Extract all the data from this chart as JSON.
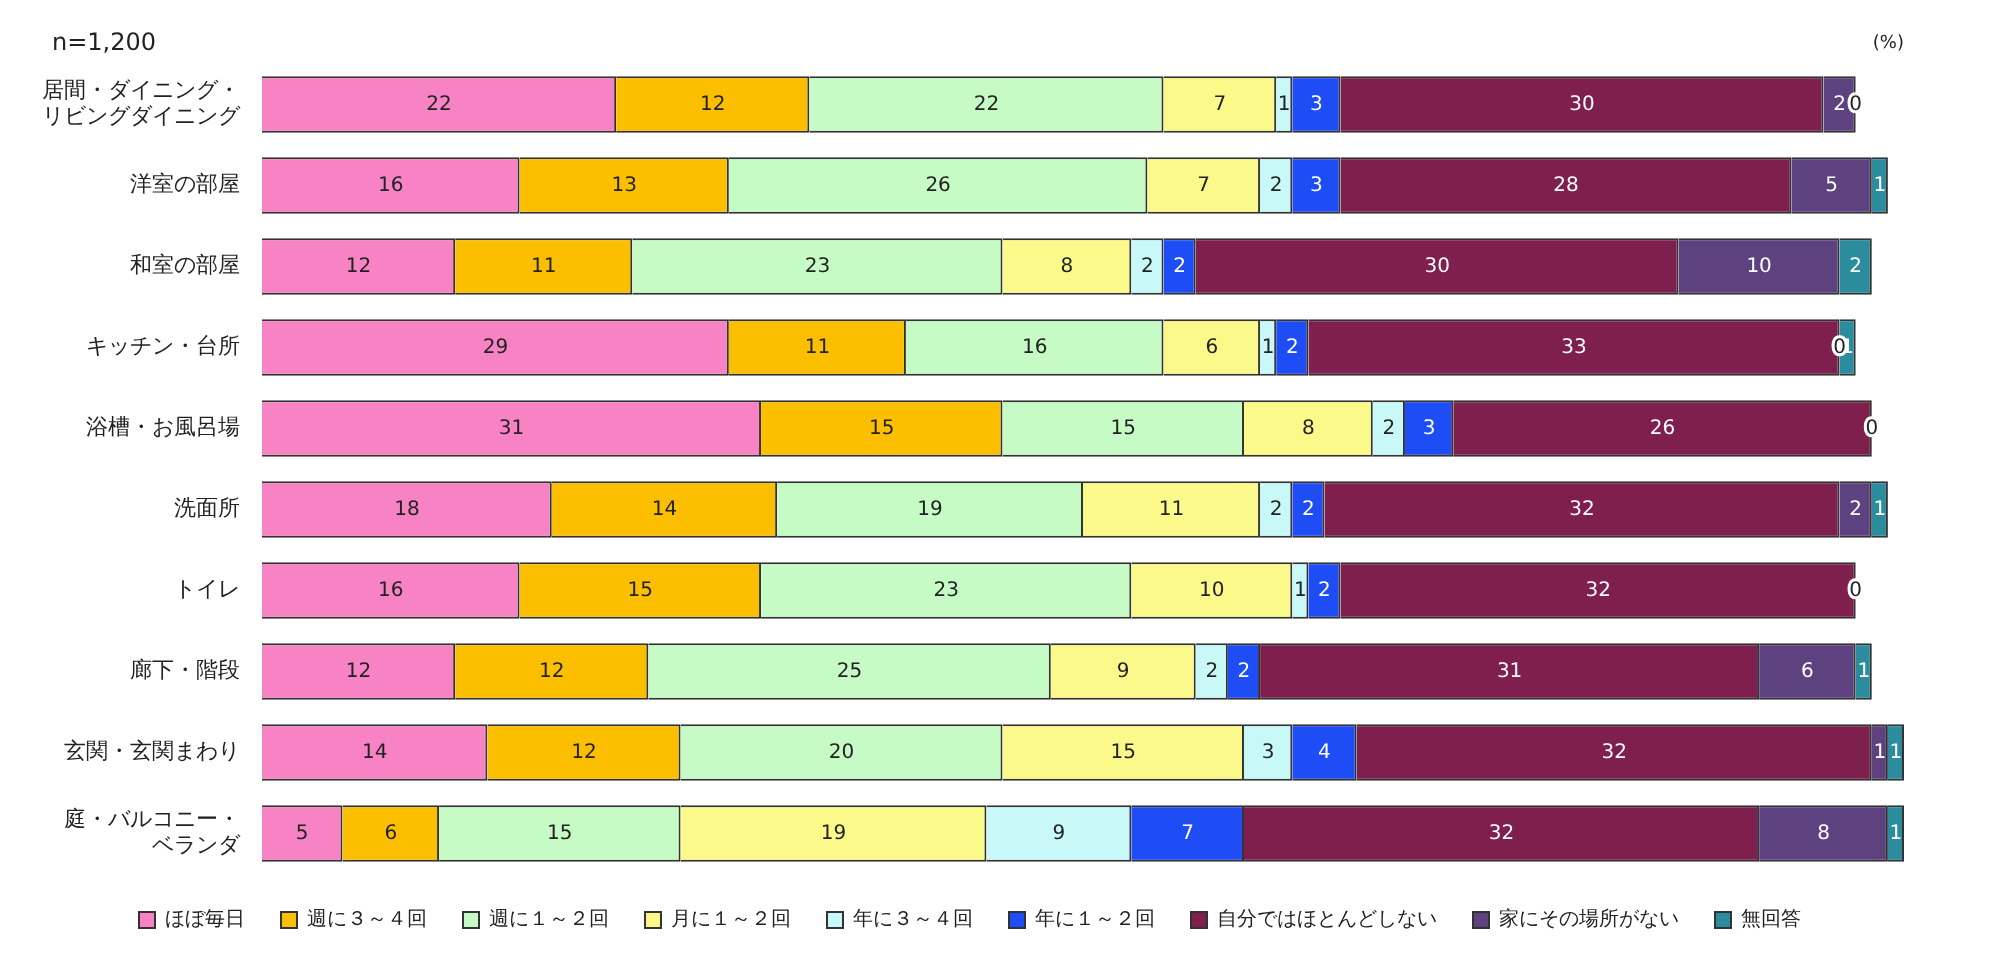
{
  "chart_data": {
    "type": "bar",
    "orientation": "horizontal",
    "stacked": true,
    "legend": "bottom",
    "categories": [
      "居間・ダイニング・リビングダイニング",
      "洋室の部屋",
      "和室の部屋",
      "キッチン・台所",
      "浴槽・お風呂場",
      "洗面所",
      "トイレ",
      "廊下・階段",
      "玄関・玄関まわり",
      "庭・バルコニー・ベランダ"
    ],
    "annotations": [
      "n=1,200",
      "(%)"
    ],
    "series": [
      {
        "name": "ほぼ毎日",
        "color": "#f783c4",
        "values": [
          22,
          16,
          12,
          29,
          31,
          18,
          16,
          12,
          14,
          5
        ],
        "value_labels": [
          "22",
          "16",
          "12",
          "29",
          "31",
          "18",
          "16",
          "12",
          "14",
          "5"
        ]
      },
      {
        "name": "週に３～４回",
        "color": "#fbbf00",
        "values": [
          12,
          13,
          11,
          11,
          15,
          14,
          15,
          12,
          12,
          6
        ],
        "value_labels": [
          "12",
          "13",
          "11",
          "11",
          "15",
          "14",
          "15",
          "12",
          "12",
          "6"
        ]
      },
      {
        "name": "週に１～２回",
        "color": "#c6fbc6",
        "values": [
          22,
          26,
          23,
          16,
          15,
          19,
          23,
          25,
          20,
          15
        ],
        "value_labels": [
          "22",
          "26",
          "23",
          "16",
          "15",
          "19",
          "23",
          "25",
          "20",
          "15"
        ]
      },
      {
        "name": "月に１～２回",
        "color": "#fbf98a",
        "values": [
          7,
          7,
          8,
          6,
          8,
          11,
          10,
          9,
          15,
          19
        ],
        "value_labels": [
          "7",
          "7",
          "8",
          "6",
          "8",
          "11",
          "10",
          "9",
          "15",
          "19"
        ]
      },
      {
        "name": "年に３～４回",
        "color": "#c8f8f8",
        "values": [
          1,
          2,
          2,
          1,
          2,
          2,
          1,
          2,
          3,
          9
        ],
        "value_labels": [
          "1",
          "2",
          "2",
          "1",
          "2",
          "2",
          "1",
          "2",
          "3",
          "9"
        ]
      },
      {
        "name": "年に１～２回",
        "color": "#1e4cf5",
        "values": [
          3,
          3,
          2,
          2,
          3,
          2,
          2,
          2,
          4,
          7
        ],
        "value_labels": [
          "3",
          "3",
          "2",
          "2",
          "3",
          "2",
          "2",
          "2",
          "4",
          "7"
        ]
      },
      {
        "name": "自分ではほとんどしない",
        "color": "#7f1f4d",
        "values": [
          30,
          28,
          30,
          33,
          26,
          32,
          32,
          31,
          32,
          32
        ],
        "value_labels": [
          "30",
          "28",
          "30",
          "33",
          "26",
          "32",
          "32",
          "31",
          "32",
          "32"
        ]
      },
      {
        "name": "家にその場所がない",
        "color": "#5e4280",
        "values": [
          2,
          5,
          10,
          0,
          0,
          2,
          0,
          6,
          1,
          8
        ],
        "value_labels": [
          "2",
          "5",
          "10",
          "0",
          "0",
          "2",
          "0",
          "6",
          "1",
          "8"
        ]
      },
      {
        "name": "無回答",
        "color": "#2a8c9c",
        "values": [
          0,
          1,
          2,
          1,
          0,
          1,
          0,
          1,
          1,
          1
        ],
        "value_labels": [
          "0",
          "1",
          "2",
          "1",
          null,
          "1",
          null,
          "1",
          "1",
          "1"
        ]
      }
    ]
  }
}
